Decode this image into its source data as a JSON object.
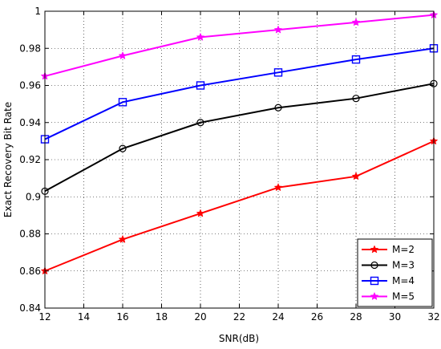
{
  "chart_data": {
    "type": "line",
    "title": "",
    "xlabel": "SNR(dB)",
    "ylabel": "Exact Recovery Bit Rate",
    "xlim": [
      12,
      32
    ],
    "ylim": [
      0.84,
      1.0
    ],
    "xticks": [
      12,
      14,
      16,
      18,
      20,
      22,
      24,
      26,
      28,
      30,
      32
    ],
    "yticks": [
      0.84,
      0.86,
      0.88,
      0.9,
      0.92,
      0.94,
      0.96,
      0.98,
      1
    ],
    "xtick_labels": [
      "12",
      "14",
      "16",
      "18",
      "20",
      "22",
      "24",
      "26",
      "28",
      "30",
      "32"
    ],
    "ytick_labels": [
      "0.84",
      "0.86",
      "0.88",
      "0.9",
      "0.92",
      "0.94",
      "0.96",
      "0.98",
      "1"
    ],
    "grid": "dotted",
    "legend_position": "bottom-right",
    "x": [
      12,
      16,
      20,
      24,
      28,
      32
    ],
    "series": [
      {
        "name": "M=2",
        "color": "#ff0000",
        "marker": "star",
        "values": [
          0.86,
          0.877,
          0.891,
          0.905,
          0.911,
          0.93
        ]
      },
      {
        "name": "M=3",
        "color": "#000000",
        "marker": "circle",
        "values": [
          0.903,
          0.926,
          0.94,
          0.948,
          0.953,
          0.961
        ]
      },
      {
        "name": "M=4",
        "color": "#0000ff",
        "marker": "square",
        "values": [
          0.931,
          0.951,
          0.96,
          0.967,
          0.974,
          0.98
        ]
      },
      {
        "name": "M=5",
        "color": "#ff00ff",
        "marker": "star",
        "values": [
          0.965,
          0.976,
          0.986,
          0.99,
          0.994,
          0.998
        ]
      }
    ]
  }
}
